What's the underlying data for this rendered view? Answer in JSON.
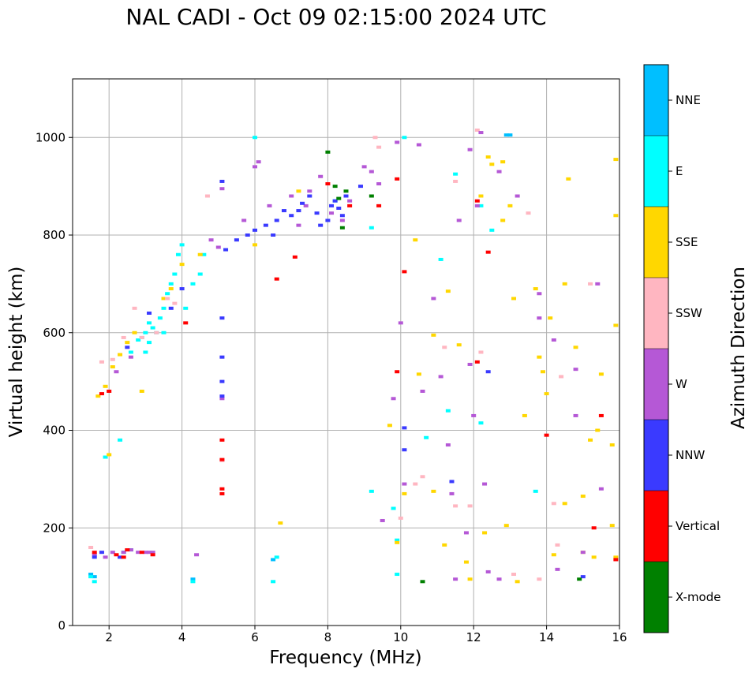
{
  "chart_data": {
    "type": "scatter",
    "title": "NAL CADI - Oct 09 02:15:00 2024 UTC",
    "xlabel": "Frequency (MHz)",
    "ylabel": "Virtual height (km)",
    "xlim": [
      1,
      16
    ],
    "ylim": [
      0,
      1120
    ],
    "xticks": [
      2,
      4,
      6,
      8,
      10,
      12,
      14,
      16
    ],
    "yticks": [
      0,
      200,
      400,
      600,
      800,
      1000
    ],
    "grid": true,
    "colorbar": {
      "label": "Azimuth Direction",
      "categories": [
        {
          "name": "X-mode",
          "color": "#008000"
        },
        {
          "name": "Vertical",
          "color": "#ff0000"
        },
        {
          "name": "NNW",
          "color": "#3a3aff"
        },
        {
          "name": "W",
          "color": "#b558d6"
        },
        {
          "name": "SSW",
          "color": "#ffb6c1"
        },
        {
          "name": "SSE",
          "color": "#ffd700"
        },
        {
          "name": "E",
          "color": "#00ffff"
        },
        {
          "name": "NNE",
          "color": "#00bfff"
        }
      ]
    },
    "series": [
      {
        "name": "NNE",
        "points": [
          [
            1.5,
            105
          ],
          [
            1.6,
            100
          ],
          [
            4.3,
            95
          ],
          [
            6.5,
            135
          ],
          [
            12.9,
            1005
          ],
          [
            13,
            1005
          ]
        ]
      },
      {
        "name": "E",
        "points": [
          [
            1.5,
            100
          ],
          [
            1.6,
            90
          ],
          [
            1.9,
            345
          ],
          [
            2.3,
            380
          ],
          [
            2.6,
            560
          ],
          [
            2.8,
            585
          ],
          [
            2.9,
            590
          ],
          [
            3,
            600
          ],
          [
            3,
            560
          ],
          [
            3.1,
            580
          ],
          [
            3.1,
            620
          ],
          [
            3.2,
            610
          ],
          [
            3.3,
            600
          ],
          [
            3.4,
            630
          ],
          [
            3.5,
            650
          ],
          [
            3.5,
            600
          ],
          [
            3.6,
            680
          ],
          [
            3.7,
            700
          ],
          [
            3.8,
            720
          ],
          [
            3.9,
            760
          ],
          [
            4,
            780
          ],
          [
            4.1,
            650
          ],
          [
            4.3,
            700
          ],
          [
            4.5,
            720
          ],
          [
            4.6,
            760
          ],
          [
            2.4,
            150
          ],
          [
            2.6,
            155
          ],
          [
            4.3,
            90
          ],
          [
            6.5,
            90
          ],
          [
            6.6,
            140
          ],
          [
            6,
            1000
          ],
          [
            8.2,
            870
          ],
          [
            9.2,
            815
          ],
          [
            9.2,
            275
          ],
          [
            9.8,
            240
          ],
          [
            9.9,
            175
          ],
          [
            9.9,
            105
          ],
          [
            10.1,
            1000
          ],
          [
            10.7,
            385
          ],
          [
            11.1,
            750
          ],
          [
            11.3,
            440
          ],
          [
            11.5,
            925
          ],
          [
            12.2,
            415
          ],
          [
            12.2,
            860
          ],
          [
            12.5,
            810
          ],
          [
            13.7,
            275
          ]
        ]
      },
      {
        "name": "SSE",
        "points": [
          [
            1.7,
            470
          ],
          [
            1.9,
            490
          ],
          [
            2,
            350
          ],
          [
            2.1,
            530
          ],
          [
            2.3,
            555
          ],
          [
            2.5,
            580
          ],
          [
            2.7,
            600
          ],
          [
            2.9,
            480
          ],
          [
            3.5,
            670
          ],
          [
            3.7,
            690
          ],
          [
            4,
            740
          ],
          [
            4.5,
            760
          ],
          [
            6,
            780
          ],
          [
            6.7,
            210
          ],
          [
            7.2,
            890
          ],
          [
            9.7,
            410
          ],
          [
            9.9,
            170
          ],
          [
            10.1,
            270
          ],
          [
            10.4,
            790
          ],
          [
            10.5,
            515
          ],
          [
            10.9,
            595
          ],
          [
            10.9,
            275
          ],
          [
            11.2,
            165
          ],
          [
            11.3,
            685
          ],
          [
            11.6,
            575
          ],
          [
            11.8,
            130
          ],
          [
            12.2,
            880
          ],
          [
            12.4,
            960
          ],
          [
            12.5,
            945
          ],
          [
            12.8,
            950
          ],
          [
            12.8,
            830
          ],
          [
            13,
            860
          ],
          [
            13.1,
            670
          ],
          [
            13.4,
            430
          ],
          [
            13.7,
            690
          ],
          [
            13.8,
            550
          ],
          [
            13.9,
            520
          ],
          [
            14,
            475
          ],
          [
            14.1,
            630
          ],
          [
            14.5,
            700
          ],
          [
            14.6,
            915
          ],
          [
            14.8,
            570
          ],
          [
            15,
            265
          ],
          [
            15.2,
            380
          ],
          [
            15.4,
            400
          ],
          [
            15.5,
            515
          ],
          [
            15.8,
            205
          ],
          [
            15.8,
            370
          ],
          [
            15.9,
            955
          ],
          [
            15.9,
            840
          ],
          [
            15.9,
            615
          ],
          [
            15.9,
            140
          ],
          [
            12.9,
            205
          ],
          [
            12.3,
            190
          ],
          [
            11.9,
            95
          ],
          [
            14.2,
            145
          ],
          [
            14.5,
            250
          ],
          [
            15,
            150
          ],
          [
            15.3,
            140
          ],
          [
            13.2,
            90
          ]
        ]
      },
      {
        "name": "SSW",
        "points": [
          [
            1.5,
            160
          ],
          [
            1.8,
            540
          ],
          [
            2.1,
            545
          ],
          [
            2.4,
            590
          ],
          [
            2.7,
            650
          ],
          [
            2.9,
            590
          ],
          [
            3.3,
            600
          ],
          [
            3.6,
            670
          ],
          [
            3.8,
            660
          ],
          [
            4.7,
            880
          ],
          [
            5.1,
            338
          ],
          [
            9.3,
            1000
          ],
          [
            9.4,
            980
          ],
          [
            10,
            220
          ],
          [
            10.4,
            290
          ],
          [
            10.6,
            305
          ],
          [
            11.2,
            570
          ],
          [
            11.5,
            245
          ],
          [
            11.9,
            245
          ],
          [
            12.1,
            1015
          ],
          [
            12.2,
            560
          ],
          [
            13.1,
            105
          ],
          [
            13.5,
            845
          ],
          [
            13.8,
            95
          ],
          [
            14.2,
            250
          ],
          [
            14.4,
            510
          ],
          [
            14.3,
            165
          ],
          [
            15.2,
            700
          ],
          [
            11.5,
            910
          ]
        ]
      },
      {
        "name": "W",
        "points": [
          [
            1.6,
            145
          ],
          [
            1.9,
            140
          ],
          [
            2.1,
            150
          ],
          [
            2.4,
            150
          ],
          [
            2.6,
            155
          ],
          [
            2.8,
            150
          ],
          [
            3,
            150
          ],
          [
            3.1,
            150
          ],
          [
            3.2,
            150
          ],
          [
            2.2,
            520
          ],
          [
            2.6,
            550
          ],
          [
            4.4,
            145
          ],
          [
            4.8,
            790
          ],
          [
            5,
            775
          ],
          [
            5.1,
            895
          ],
          [
            5.1,
            465
          ],
          [
            5.7,
            830
          ],
          [
            6,
            940
          ],
          [
            6.1,
            950
          ],
          [
            6.4,
            860
          ],
          [
            7,
            880
          ],
          [
            7.2,
            820
          ],
          [
            7.4,
            860
          ],
          [
            7.5,
            890
          ],
          [
            7.8,
            920
          ],
          [
            8.1,
            845
          ],
          [
            8.4,
            830
          ],
          [
            8.6,
            870
          ],
          [
            9,
            940
          ],
          [
            9.2,
            930
          ],
          [
            9.4,
            905
          ],
          [
            9.5,
            215
          ],
          [
            9.8,
            465
          ],
          [
            9.9,
            990
          ],
          [
            10,
            620
          ],
          [
            10.1,
            290
          ],
          [
            10.5,
            985
          ],
          [
            10.6,
            480
          ],
          [
            10.9,
            670
          ],
          [
            11.1,
            510
          ],
          [
            11.3,
            370
          ],
          [
            11.4,
            270
          ],
          [
            11.5,
            95
          ],
          [
            11.6,
            830
          ],
          [
            11.8,
            190
          ],
          [
            11.9,
            535
          ],
          [
            12,
            430
          ],
          [
            12.1,
            860
          ],
          [
            12.3,
            290
          ],
          [
            12.4,
            110
          ],
          [
            12.7,
            930
          ],
          [
            12.7,
            95
          ],
          [
            13.2,
            880
          ],
          [
            13.8,
            680
          ],
          [
            13.8,
            630
          ],
          [
            14.2,
            585
          ],
          [
            14.3,
            115
          ],
          [
            14.8,
            430
          ],
          [
            14.8,
            525
          ],
          [
            15,
            150
          ],
          [
            15.4,
            700
          ],
          [
            15.5,
            280
          ],
          [
            12.2,
            1010
          ],
          [
            11.9,
            975
          ]
        ]
      },
      {
        "name": "NNW",
        "points": [
          [
            1.6,
            140
          ],
          [
            1.8,
            150
          ],
          [
            2.3,
            140
          ],
          [
            2.5,
            570
          ],
          [
            3.1,
            640
          ],
          [
            3.7,
            650
          ],
          [
            4,
            690
          ],
          [
            5.1,
            550
          ],
          [
            5.1,
            500
          ],
          [
            5.1,
            470
          ],
          [
            5.1,
            630
          ],
          [
            5.1,
            910
          ],
          [
            5.2,
            770
          ],
          [
            5.5,
            790
          ],
          [
            5.8,
            800
          ],
          [
            6,
            810
          ],
          [
            6.3,
            820
          ],
          [
            6.5,
            800
          ],
          [
            6.6,
            830
          ],
          [
            6.8,
            850
          ],
          [
            7,
            840
          ],
          [
            7.2,
            850
          ],
          [
            7.3,
            865
          ],
          [
            7.5,
            880
          ],
          [
            7.7,
            845
          ],
          [
            7.8,
            820
          ],
          [
            8,
            830
          ],
          [
            8.1,
            860
          ],
          [
            8.2,
            870
          ],
          [
            8.3,
            855
          ],
          [
            8.4,
            840
          ],
          [
            8.5,
            880
          ],
          [
            8.9,
            900
          ],
          [
            10.1,
            360
          ],
          [
            10.1,
            405
          ],
          [
            11.4,
            295
          ],
          [
            12.4,
            520
          ],
          [
            15,
            100
          ]
        ]
      },
      {
        "name": "Vertical",
        "points": [
          [
            1.6,
            150
          ],
          [
            1.8,
            475
          ],
          [
            2,
            480
          ],
          [
            2.2,
            145
          ],
          [
            2.4,
            140
          ],
          [
            2.5,
            155
          ],
          [
            2.9,
            150
          ],
          [
            3.2,
            145
          ],
          [
            4.1,
            620
          ],
          [
            5.1,
            380
          ],
          [
            5.1,
            340
          ],
          [
            5.1,
            280
          ],
          [
            5.1,
            270
          ],
          [
            6.6,
            710
          ],
          [
            7.1,
            755
          ],
          [
            8,
            905
          ],
          [
            8.6,
            860
          ],
          [
            9.4,
            860
          ],
          [
            9.9,
            915
          ],
          [
            9.9,
            520
          ],
          [
            10.1,
            725
          ],
          [
            12.1,
            540
          ],
          [
            12.1,
            870
          ],
          [
            12.4,
            765
          ],
          [
            14,
            390
          ],
          [
            15.3,
            200
          ],
          [
            15.5,
            430
          ],
          [
            15.9,
            135
          ]
        ]
      },
      {
        "name": "X-mode",
        "points": [
          [
            8,
            970
          ],
          [
            8.2,
            900
          ],
          [
            8.3,
            875
          ],
          [
            8.4,
            815
          ],
          [
            8.5,
            890
          ],
          [
            9.2,
            880
          ],
          [
            10.6,
            90
          ],
          [
            14.9,
            95
          ]
        ]
      }
    ]
  }
}
